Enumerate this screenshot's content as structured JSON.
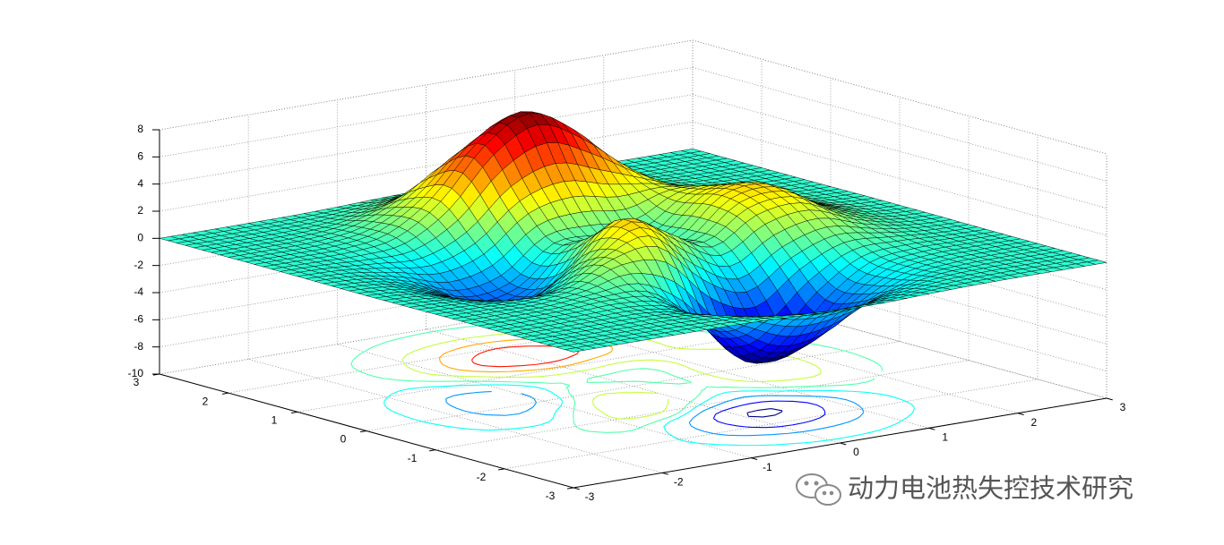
{
  "chart_data": {
    "type": "surface",
    "x": [
      -3,
      -2.5,
      -2,
      -1.5,
      -1,
      -0.5,
      0,
      0.5,
      1,
      1.5,
      2,
      2.5,
      3
    ],
    "y": [
      -3,
      -2.5,
      -2,
      -1.5,
      -1,
      -0.5,
      0,
      0.5,
      1,
      1.5,
      2,
      2.5,
      3
    ],
    "z": [
      [
        0,
        0,
        0,
        0,
        -0.03,
        -0.14,
        -0.24,
        -0.22,
        -0.11,
        -0.03,
        0,
        0,
        0
      ],
      [
        0,
        0,
        0.01,
        0,
        -0.23,
        -0.91,
        -1.57,
        -1.41,
        -0.69,
        -0.18,
        -0.03,
        0,
        0
      ],
      [
        0,
        0.01,
        0.05,
        0.04,
        -0.59,
        -2.64,
        -4.76,
        -4.35,
        -2.1,
        -0.53,
        -0.06,
        0,
        0
      ],
      [
        0,
        0.01,
        0.08,
        0.33,
        0.15,
        -2.19,
        -5.68,
        -5.76,
        -2.64,
        -0.44,
        0.04,
        0.03,
        0
      ],
      [
        -0.01,
        -0.06,
        -0.13,
        0.3,
        1.86,
        2.22,
        -0.72,
        -2.22,
        -0.27,
        0.88,
        0.5,
        0.11,
        0.01
      ],
      [
        -0.03,
        -0.2,
        -0.8,
        -1.21,
        0.8,
        3.55,
        2,
        0.39,
        2.2,
        2.56,
        1.12,
        0.24,
        0.03
      ],
      [
        -0.04,
        -0.3,
        -1.33,
        -2.77,
        -1.65,
        1.48,
        0.98,
        0.37,
        2.94,
        3.27,
        1.41,
        0.3,
        0.03
      ],
      [
        -0.03,
        -0.25,
        -1.12,
        -2.49,
        -2,
        0.39,
        0.46,
        0.38,
        2.38,
        2.56,
        1.09,
        0.23,
        0.03
      ],
      [
        -0.01,
        -0.11,
        -0.48,
        -0.86,
        0.23,
        2.79,
        3.69,
        2.93,
        2.43,
        1.58,
        0.58,
        0.11,
        0.01
      ],
      [
        0,
        -0.02,
        -0.01,
        0.48,
        2.61,
        6.2,
        8,
        6.25,
        3.25,
        1.19,
        0.29,
        0.05,
        0
      ],
      [
        0,
        0.01,
        0.08,
        0.55,
        2.1,
        4.56,
        5.86,
        4.57,
        2.21,
        0.68,
        0.13,
        0.02,
        0
      ],
      [
        0,
        0,
        0.03,
        0.19,
        0.69,
        1.47,
        1.88,
        1.47,
        0.7,
        0.2,
        0.04,
        0,
        0
      ],
      [
        0,
        0,
        0.01,
        0.03,
        0.11,
        0.23,
        0.3,
        0.23,
        0.11,
        0.03,
        0.01,
        0,
        0
      ]
    ],
    "xlim": [
      -3,
      3
    ],
    "ylim": [
      -3,
      3
    ],
    "zlim": [
      -10,
      8
    ],
    "xticks": [
      -3,
      -2,
      -1,
      0,
      1,
      2,
      3
    ],
    "yticks": [
      -3,
      -2,
      -1,
      0,
      1,
      2,
      3
    ],
    "zticks": [
      -10,
      -8,
      -6,
      -4,
      -2,
      0,
      2,
      4,
      6,
      8
    ],
    "grid": true,
    "colormap": "jet",
    "edge_color": "#000000",
    "contour_levels": [
      -6,
      -4,
      -2,
      -0.5,
      0.5,
      2,
      4,
      6
    ]
  },
  "watermark": "动力电池热失控技术研究"
}
